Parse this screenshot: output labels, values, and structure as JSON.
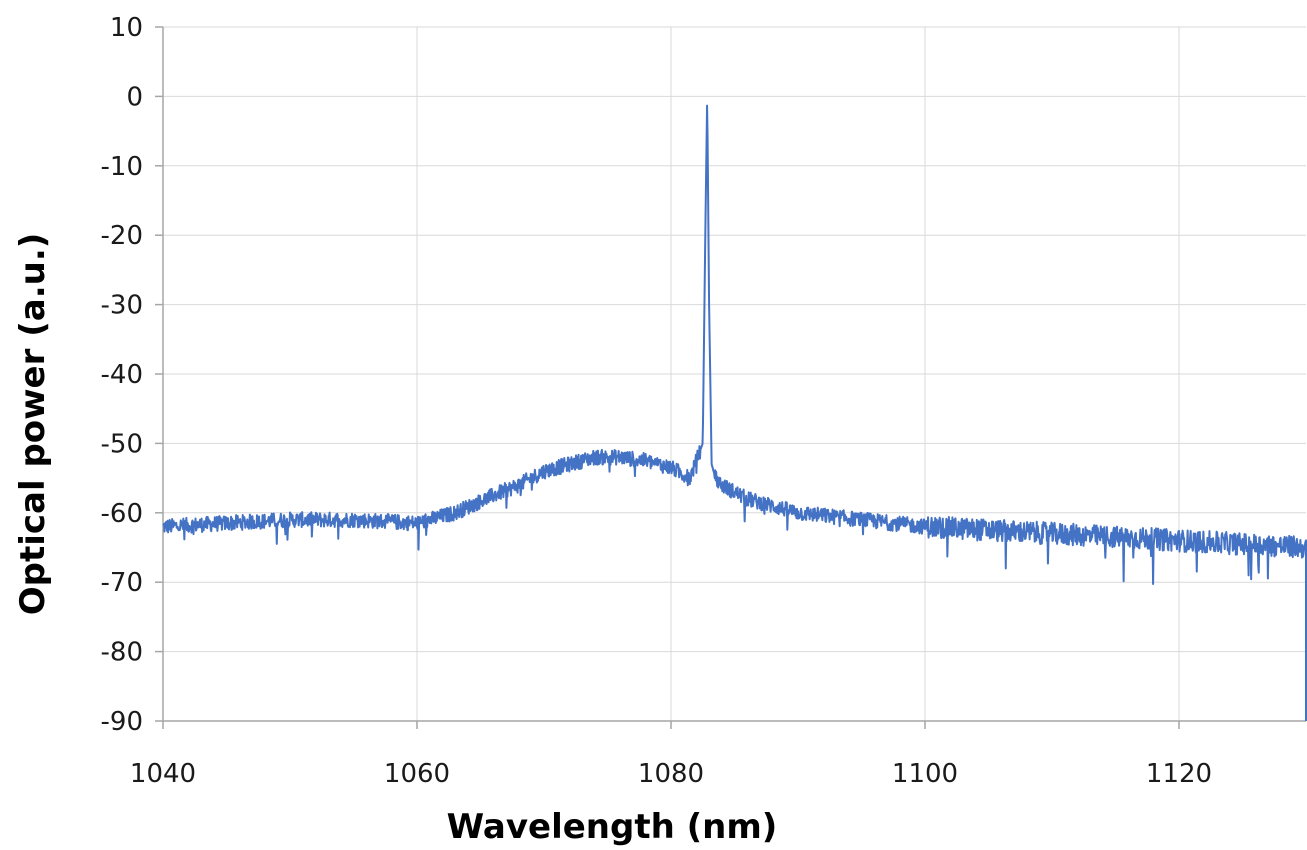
{
  "chart_data": {
    "type": "line",
    "title": "",
    "xlabel": "Wavelength (nm)",
    "ylabel": "Optical power (a.u.)",
    "xlim": [
      1040,
      1130
    ],
    "ylim": [
      -90,
      10
    ],
    "x_ticks": [
      1040,
      1060,
      1080,
      1100,
      1120
    ],
    "y_ticks": [
      10,
      0,
      -10,
      -20,
      -30,
      -40,
      -50,
      -60,
      -70,
      -80,
      -90
    ],
    "grid": true,
    "legend": "none",
    "series": [
      {
        "color": "#4472c4",
        "x": [
          1040,
          1045,
          1050,
          1055,
          1060,
          1063,
          1066,
          1068,
          1070,
          1072,
          1074,
          1076,
          1078,
          1080,
          1081.5,
          1082.5,
          1082.7,
          1082.85,
          1083,
          1083.2,
          1083.5,
          1084,
          1086,
          1090,
          1095,
          1100,
          1105,
          1110,
          1115,
          1120,
          1125,
          1130
        ],
        "y": [
          -62,
          -61.5,
          -61,
          -61,
          -61.5,
          -60,
          -57.5,
          -56,
          -54,
          -53,
          -52,
          -52,
          -52.5,
          -53.5,
          -55,
          -50,
          -20,
          0,
          -30,
          -53,
          -55,
          -56,
          -58,
          -60,
          -61,
          -62,
          -62.5,
          -63,
          -63.5,
          -64,
          -64.5,
          -65
        ]
      }
    ]
  }
}
